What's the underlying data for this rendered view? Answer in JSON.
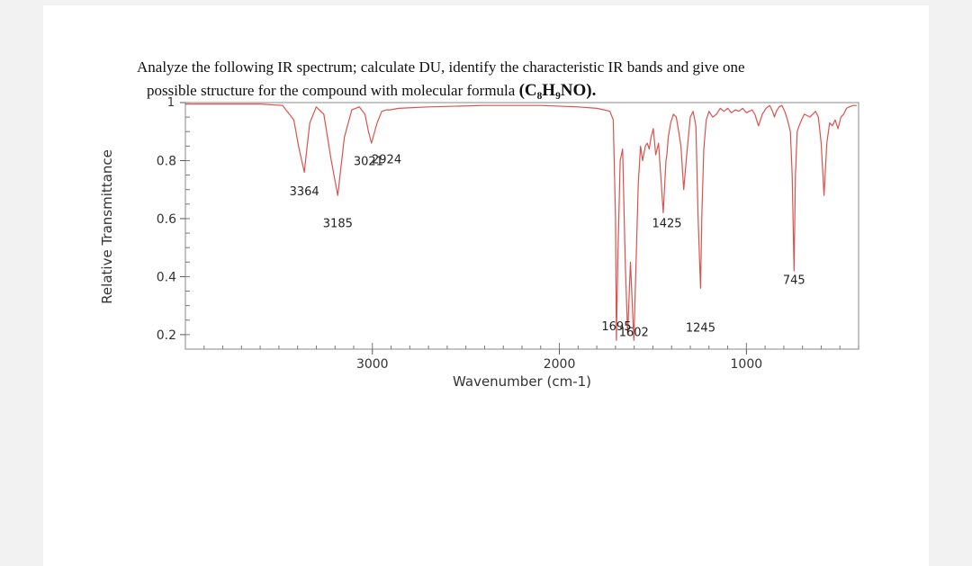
{
  "question": {
    "line1": "Analyze the following IR spectrum; calculate DU, identify the characteristic IR bands and give one",
    "line2_prefix": "possible structure for the compound with molecular formula",
    "formula": "(C₈H₉NO)."
  },
  "chart_data": {
    "type": "line",
    "title": "",
    "xlabel": "Wavenumber (cm-1)",
    "ylabel": "Relative Transmittance",
    "xlim": [
      4000,
      400
    ],
    "ylim": [
      0.15,
      1.0
    ],
    "x_reversed": true,
    "grid": false,
    "legend": "none",
    "line_color": "#d9534f",
    "x_ticks": [
      {
        "value": 3000,
        "label": "3000"
      },
      {
        "value": 2000,
        "label": "2000"
      },
      {
        "value": 1000,
        "label": "1000"
      }
    ],
    "y_ticks": [
      {
        "value": 1.0,
        "label": "1"
      },
      {
        "value": 0.8,
        "label": "0.8"
      },
      {
        "value": 0.6,
        "label": "0.6"
      },
      {
        "value": 0.4,
        "label": "0.4"
      },
      {
        "value": 0.2,
        "label": "0.2"
      }
    ],
    "series": [
      {
        "x": [
          4000,
          3600,
          3480,
          3420,
          3395,
          3364,
          3335,
          3300,
          3260,
          3220,
          3185,
          3150,
          3110,
          3070,
          3040,
          3021,
          3005,
          2975,
          2950,
          2924,
          2905,
          2860,
          2700,
          2400,
          2100,
          1900,
          1800,
          1760,
          1730,
          1712,
          1700,
          1695,
          1688,
          1675,
          1662,
          1648,
          1635,
          1620,
          1610,
          1602,
          1592,
          1578,
          1566,
          1555,
          1540,
          1530,
          1520,
          1510,
          1498,
          1485,
          1470,
          1455,
          1445,
          1430,
          1425,
          1418,
          1405,
          1390,
          1375,
          1362,
          1350,
          1335,
          1318,
          1300,
          1285,
          1270,
          1258,
          1245,
          1238,
          1228,
          1215,
          1200,
          1180,
          1160,
          1140,
          1120,
          1100,
          1080,
          1060,
          1040,
          1020,
          1000,
          985,
          970,
          955,
          935,
          915,
          895,
          875,
          860,
          850,
          840,
          825,
          810,
          795,
          780,
          765,
          755,
          745,
          738,
          728,
          718,
          705,
          690,
          675,
          660,
          645,
          630,
          615,
          600,
          585,
          570,
          555,
          540,
          525,
          510,
          495,
          480,
          465,
          450,
          430,
          410
        ],
        "y": [
          0.995,
          0.995,
          0.99,
          0.94,
          0.85,
          0.76,
          0.93,
          0.985,
          0.96,
          0.8,
          0.68,
          0.88,
          0.975,
          0.985,
          0.96,
          0.9,
          0.86,
          0.93,
          0.97,
          0.975,
          0.975,
          0.98,
          0.985,
          0.99,
          0.99,
          0.985,
          0.98,
          0.975,
          0.97,
          0.94,
          0.6,
          0.18,
          0.45,
          0.8,
          0.84,
          0.45,
          0.2,
          0.45,
          0.3,
          0.18,
          0.4,
          0.72,
          0.85,
          0.8,
          0.85,
          0.86,
          0.84,
          0.88,
          0.91,
          0.82,
          0.86,
          0.72,
          0.62,
          0.8,
          0.82,
          0.88,
          0.93,
          0.96,
          0.95,
          0.9,
          0.85,
          0.7,
          0.83,
          0.95,
          0.97,
          0.92,
          0.6,
          0.36,
          0.62,
          0.84,
          0.94,
          0.97,
          0.95,
          0.96,
          0.98,
          0.97,
          0.98,
          0.965,
          0.975,
          0.97,
          0.98,
          0.965,
          0.97,
          0.975,
          0.96,
          0.92,
          0.96,
          0.98,
          0.99,
          0.97,
          0.95,
          0.97,
          0.985,
          0.99,
          0.97,
          0.94,
          0.9,
          0.75,
          0.42,
          0.75,
          0.9,
          0.92,
          0.94,
          0.96,
          0.955,
          0.95,
          0.96,
          0.97,
          0.95,
          0.86,
          0.68,
          0.86,
          0.93,
          0.92,
          0.94,
          0.91,
          0.95,
          0.96,
          0.98,
          0.985,
          0.99,
          0.99
        ]
      }
    ],
    "peak_labels": [
      {
        "label": "3364",
        "x": 3364,
        "y": 0.68
      },
      {
        "label": "3185",
        "x": 3185,
        "y": 0.57
      },
      {
        "label": "3021",
        "x": 3021,
        "y": 0.785
      },
      {
        "label": "2924",
        "x": 2924,
        "y": 0.79
      },
      {
        "label": "1695",
        "x": 1695,
        "y": 0.215
      },
      {
        "label": "1602",
        "x": 1602,
        "y": 0.195
      },
      {
        "label": "1425",
        "x": 1425,
        "y": 0.57
      },
      {
        "label": "1245",
        "x": 1245,
        "y": 0.21
      },
      {
        "label": "745",
        "x": 745,
        "y": 0.375
      }
    ]
  }
}
